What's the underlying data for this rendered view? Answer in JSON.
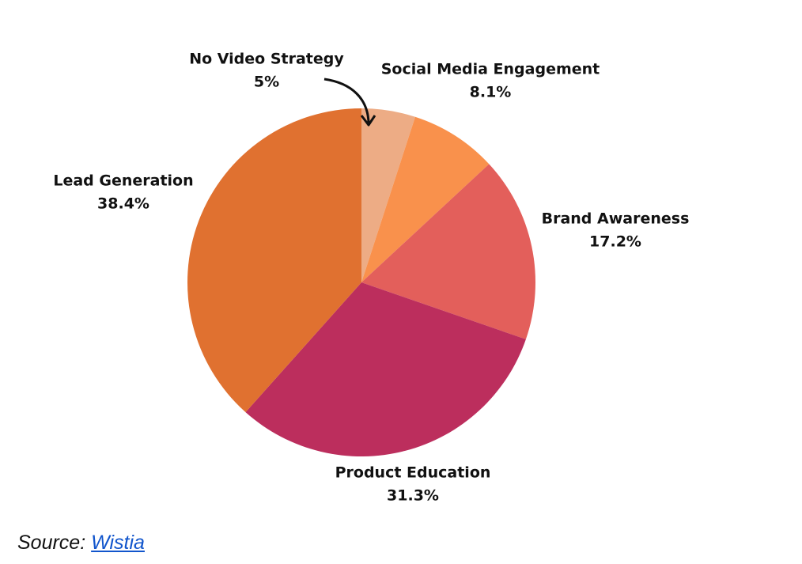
{
  "chart_data": {
    "type": "pie",
    "categories": [
      "No Video Strategy",
      "Social Media Engagement",
      "Brand Awareness",
      "Product Education",
      "Lead Generation"
    ],
    "values": [
      5,
      8.1,
      17.2,
      31.3,
      38.4
    ],
    "value_labels": [
      "5%",
      "8.1%",
      "17.2%",
      "31.3%",
      "38.4%"
    ],
    "colors": [
      "#edac85",
      "#f9914c",
      "#e35f5b",
      "#bc2e5d",
      "#e07130"
    ]
  },
  "source": {
    "prefix": "Source:",
    "link": "Wistia"
  }
}
